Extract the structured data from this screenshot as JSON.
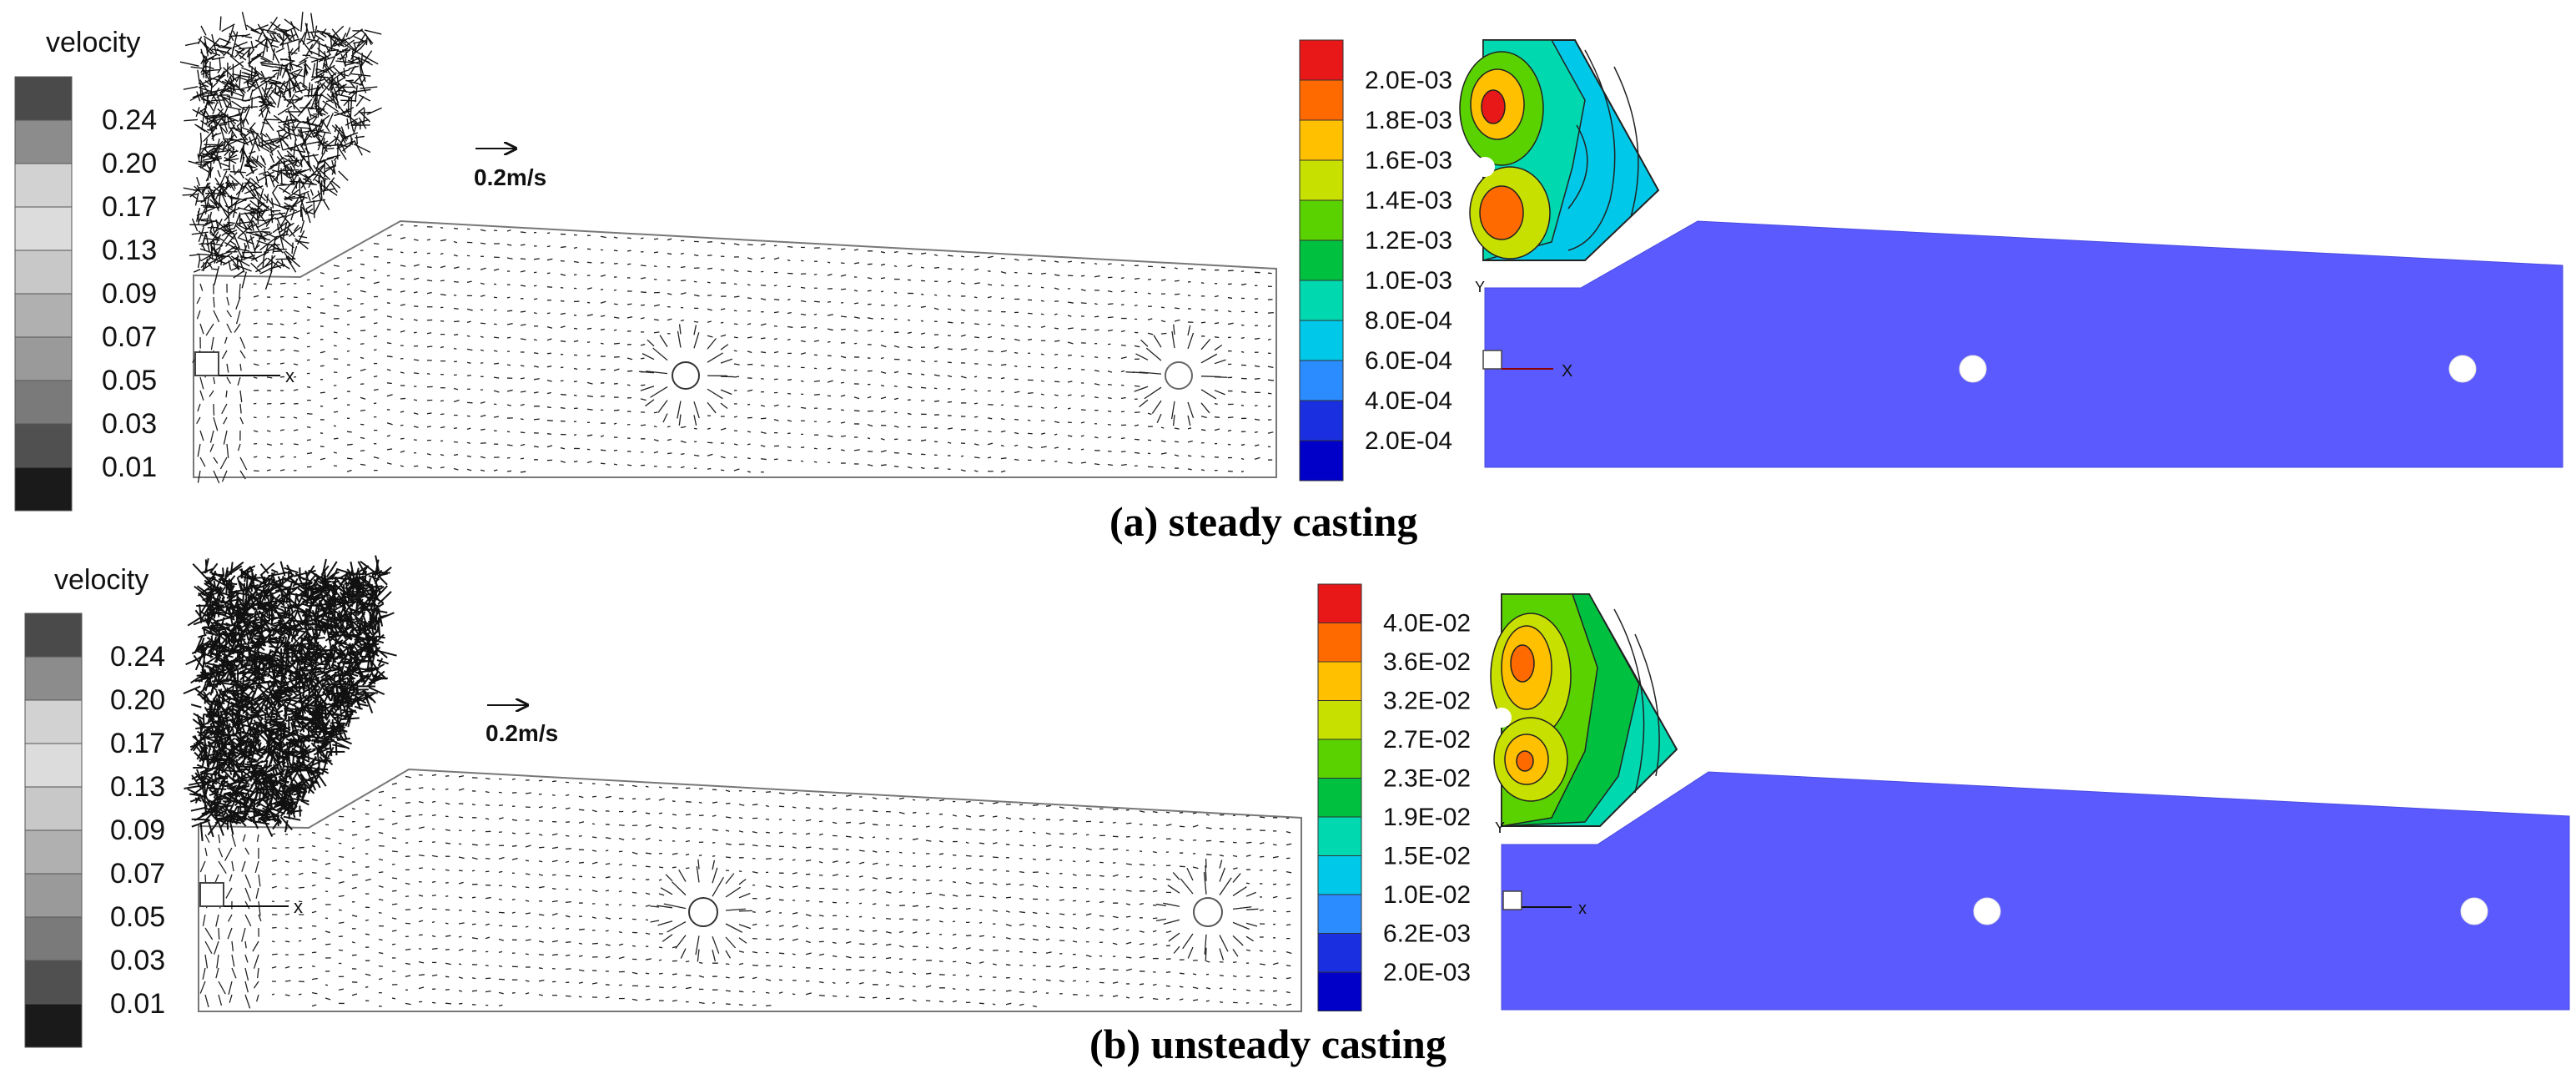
{
  "panels": [
    {
      "caption": "(a) steady casting",
      "velocity_legend": {
        "title": "velocity",
        "labels": [
          "0.24",
          "0.20",
          "0.17",
          "0.13",
          "0.09",
          "0.07",
          "0.05",
          "0.03",
          "0.01"
        ],
        "colors": [
          "#4a4a4a",
          "#8c8c8c",
          "#d2d2d2",
          "#dcdcdc",
          "#c8c8c8",
          "#b0b0b0",
          "#9a9a9a",
          "#7a7a7a",
          "#505050",
          "#1a1a1a"
        ]
      },
      "scale_arrow_label": "0.2m/s",
      "axis_label": "x",
      "contour_legend": {
        "labels": [
          "2.0E-03",
          "1.8E-03",
          "1.6E-03",
          "1.4E-03",
          "1.2E-03",
          "1.0E-03",
          "8.0E-04",
          "6.0E-04",
          "4.0E-04",
          "2.0E-04"
        ],
        "colors": [
          "#e81818",
          "#ff6a00",
          "#ffc000",
          "#c8e000",
          "#5ad200",
          "#00c040",
          "#00d8b0",
          "#00c8e8",
          "#2a8cff",
          "#1a30e0",
          "#0000c8"
        ]
      },
      "contour_axis_x": "X",
      "contour_axis_y": "Y"
    },
    {
      "caption": "(b) unsteady casting",
      "velocity_legend": {
        "title": "velocity",
        "labels": [
          "0.24",
          "0.20",
          "0.17",
          "0.13",
          "0.09",
          "0.07",
          "0.05",
          "0.03",
          "0.01"
        ],
        "colors": [
          "#4a4a4a",
          "#8c8c8c",
          "#d2d2d2",
          "#dcdcdc",
          "#c8c8c8",
          "#b0b0b0",
          "#9a9a9a",
          "#7a7a7a",
          "#505050",
          "#1a1a1a"
        ]
      },
      "scale_arrow_label": "0.2m/s",
      "axis_label": "x",
      "contour_legend": {
        "labels": [
          "4.0E-02",
          "3.6E-02",
          "3.2E-02",
          "2.7E-02",
          "2.3E-02",
          "1.9E-02",
          "1.5E-02",
          "1.0E-02",
          "6.2E-03",
          "2.0E-03"
        ],
        "colors": [
          "#e81818",
          "#ff6a00",
          "#ffc000",
          "#c8e000",
          "#5ad200",
          "#00c040",
          "#00d8b0",
          "#00c8e8",
          "#2a8cff",
          "#1a30e0",
          "#0000c8"
        ]
      },
      "contour_axis_x": "x",
      "contour_axis_y": "Y"
    }
  ],
  "colors": {
    "domain_fill": "#5a5aff",
    "outline": "#777777",
    "vector": "#222222"
  }
}
